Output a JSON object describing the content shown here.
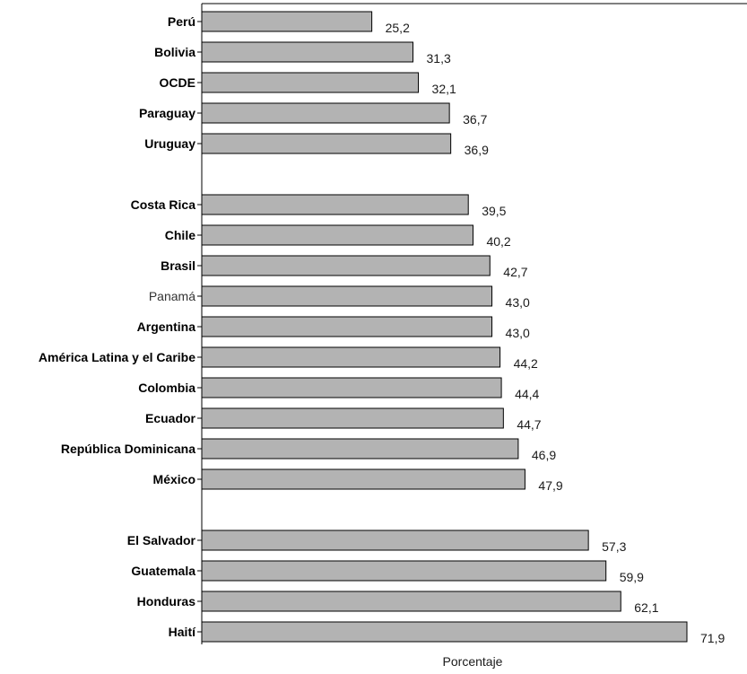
{
  "chart_data": {
    "type": "bar",
    "orientation": "horizontal",
    "xlabel": "Porcentaje",
    "xlim": [
      0,
      72
    ],
    "bar_color": "#b3b3b3",
    "bar_stroke": "#000000",
    "grid": false,
    "groups": [
      [
        "Perú",
        "Bolivia",
        "OCDE",
        "Paraguay",
        "Uruguay"
      ],
      [
        "Costa Rica",
        "Chile",
        "Brasil",
        "Panamá",
        "Argentina",
        "América Latina y el Caribe",
        "Colombia",
        "Ecuador",
        "República Dominicana",
        "México"
      ],
      [
        "El Salvador",
        "Guatemala",
        "Honduras",
        "Haití"
      ]
    ],
    "categories": [
      "Perú",
      "Bolivia",
      "OCDE",
      "Paraguay",
      "Uruguay",
      "Costa Rica",
      "Chile",
      "Brasil",
      "Panamá",
      "Argentina",
      "América Latina y el Caribe",
      "Colombia",
      "Ecuador",
      "República Dominicana",
      "México",
      "El Salvador",
      "Guatemala",
      "Honduras",
      "Haití"
    ],
    "values": [
      25.2,
      31.3,
      32.1,
      36.7,
      36.9,
      39.5,
      40.2,
      42.7,
      43.0,
      43.0,
      44.2,
      44.4,
      44.7,
      46.9,
      47.9,
      57.3,
      59.9,
      62.1,
      71.9
    ],
    "value_labels": [
      "25,2",
      "31,3",
      "32,1",
      "36,7",
      "36,9",
      "39,5",
      "40,2",
      "42,7",
      "43,0",
      "43,0",
      "44,2",
      "44,4",
      "44,7",
      "46,9",
      "47,9",
      "57,3",
      "59,9",
      "62,1",
      "71,9"
    ],
    "emphasized": [
      "OCDE",
      "América Latina y el Caribe"
    ],
    "light": [
      "Panamá"
    ]
  }
}
